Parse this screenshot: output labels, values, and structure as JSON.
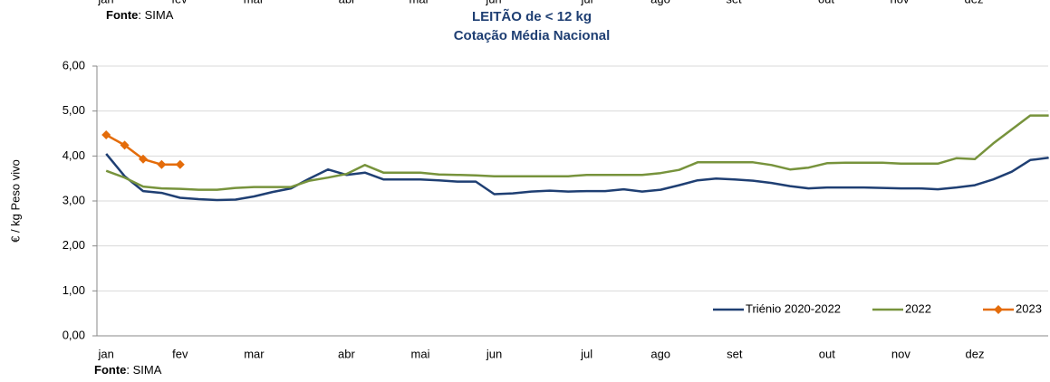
{
  "top_fragment": {
    "months": [
      "jan",
      "fev",
      "mar",
      "abr",
      "mai",
      "jun",
      "jul",
      "ago",
      "set",
      "out",
      "nov",
      "dez"
    ],
    "source_label": "Fonte",
    "source": ": SIMA"
  },
  "chart_data": {
    "type": "line",
    "title": "LEITÃO de < 12 kg",
    "subtitle": "Cotação Média Nacional",
    "y_label": "€ / kg Peso vivo",
    "categories": [
      "jan",
      null,
      null,
      null,
      "fev",
      null,
      null,
      null,
      "mar",
      null,
      null,
      null,
      null,
      "abr",
      null,
      null,
      null,
      "mai",
      null,
      null,
      null,
      "jun",
      null,
      null,
      null,
      null,
      "jul",
      null,
      null,
      null,
      "ago",
      null,
      null,
      null,
      "set",
      null,
      null,
      null,
      null,
      "out",
      null,
      null,
      null,
      "nov",
      null,
      null,
      null,
      "dez",
      null,
      null,
      null,
      null
    ],
    "series": [
      {
        "name": "Triénio 2020-2022",
        "color": "#1f3f73",
        "marker": false,
        "values": [
          4.05,
          3.55,
          3.22,
          3.18,
          3.07,
          3.04,
          3.02,
          3.03,
          3.1,
          3.2,
          3.28,
          3.5,
          3.7,
          3.58,
          3.63,
          3.48,
          3.48,
          3.48,
          3.46,
          3.43,
          3.43,
          3.15,
          3.17,
          3.21,
          3.23,
          3.21,
          3.22,
          3.22,
          3.26,
          3.21,
          3.25,
          3.35,
          3.46,
          3.5,
          3.48,
          3.45,
          3.4,
          3.33,
          3.28,
          3.3,
          3.3,
          3.3,
          3.29,
          3.28,
          3.28,
          3.26,
          3.3,
          3.35,
          3.48,
          3.65,
          3.91,
          3.96
        ]
      },
      {
        "name": "2022",
        "color": "#77933c",
        "marker": false,
        "values": [
          3.67,
          3.52,
          3.32,
          3.28,
          3.27,
          3.25,
          3.25,
          3.29,
          3.31,
          3.31,
          3.31,
          3.45,
          3.52,
          3.6,
          3.8,
          3.63,
          3.63,
          3.63,
          3.59,
          3.58,
          3.57,
          3.55,
          3.55,
          3.55,
          3.55,
          3.55,
          3.58,
          3.58,
          3.58,
          3.58,
          3.62,
          3.69,
          3.86,
          3.86,
          3.86,
          3.86,
          3.8,
          3.7,
          3.74,
          3.84,
          3.85,
          3.85,
          3.85,
          3.83,
          3.83,
          3.83,
          3.95,
          3.93,
          4.28,
          4.59,
          4.9,
          4.9
        ]
      },
      {
        "name": "2023",
        "color": "#e46c0a",
        "marker": true,
        "values": [
          4.47,
          4.24,
          3.93,
          3.81,
          3.81,
          null,
          null,
          null,
          null,
          null,
          null,
          null,
          null,
          null,
          null,
          null,
          null,
          null,
          null,
          null,
          null,
          null,
          null,
          null,
          null,
          null,
          null,
          null,
          null,
          null,
          null,
          null,
          null,
          null,
          null,
          null,
          null,
          null,
          null,
          null,
          null,
          null,
          null,
          null,
          null,
          null,
          null,
          null,
          null,
          null,
          null,
          null
        ]
      }
    ],
    "ylim": [
      0,
      6
    ],
    "yticks": [
      {
        "value": 0,
        "label": "0,00"
      },
      {
        "value": 1,
        "label": "1,00"
      },
      {
        "value": 2,
        "label": "2,00"
      },
      {
        "value": 3,
        "label": "3,00"
      },
      {
        "value": 4,
        "label": "4,00"
      },
      {
        "value": 5,
        "label": "5,00"
      },
      {
        "value": 6,
        "label": "6,00"
      }
    ],
    "grid": true,
    "legend": "lower right",
    "source_label": "Fonte",
    "source": ": SIMA"
  }
}
